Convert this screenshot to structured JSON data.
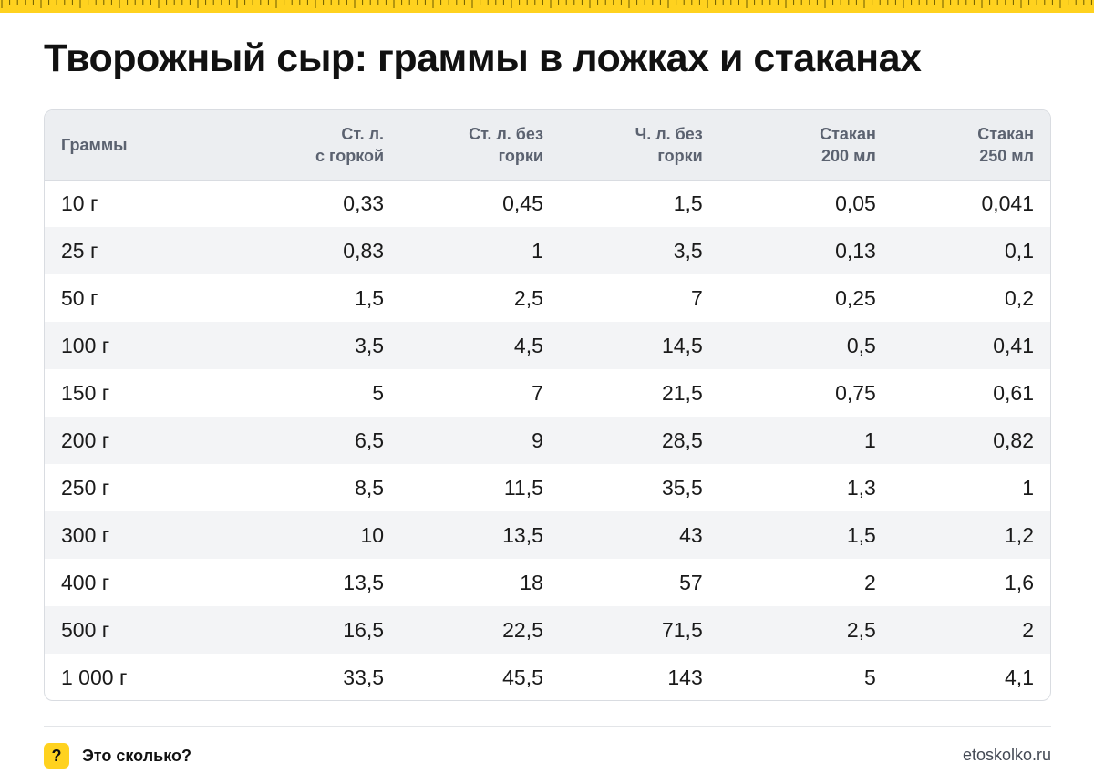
{
  "title": "Творожный сыр: граммы в ложках и стаканах",
  "table": {
    "headers": [
      [
        "Граммы"
      ],
      [
        "Ст. л.",
        "с горкой"
      ],
      [
        "Ст. л. без",
        "горки"
      ],
      [
        "Ч. л. без",
        "горки"
      ],
      [
        "Стакан",
        "200 мл"
      ],
      [
        "Стакан",
        "250 мл"
      ]
    ],
    "rows": [
      [
        "10 г",
        "0,33",
        "0,45",
        "1,5",
        "0,05",
        "0,041"
      ],
      [
        "25 г",
        "0,83",
        "1",
        "3,5",
        "0,13",
        "0,1"
      ],
      [
        "50 г",
        "1,5",
        "2,5",
        "7",
        "0,25",
        "0,2"
      ],
      [
        "100 г",
        "3,5",
        "4,5",
        "14,5",
        "0,5",
        "0,41"
      ],
      [
        "150 г",
        "5",
        "7",
        "21,5",
        "0,75",
        "0,61"
      ],
      [
        "200 г",
        "6,5",
        "9",
        "28,5",
        "1",
        "0,82"
      ],
      [
        "250 г",
        "8,5",
        "11,5",
        "35,5",
        "1,3",
        "1"
      ],
      [
        "300 г",
        "10",
        "13,5",
        "43",
        "1,5",
        "1,2"
      ],
      [
        "400 г",
        "13,5",
        "18",
        "57",
        "2",
        "1,6"
      ],
      [
        "500 г",
        "16,5",
        "22,5",
        "71,5",
        "2,5",
        "2"
      ],
      [
        "1 000 г",
        "33,5",
        "45,5",
        "143",
        "5",
        "4,1"
      ]
    ]
  },
  "footer": {
    "badge": "?",
    "brand": "Это сколько?",
    "site": "etoskolko.ru"
  },
  "colors": {
    "accent": "#ffd21f",
    "header_bg": "#eceef1",
    "stripe_bg": "#f3f4f6"
  },
  "icons": {
    "ruler": "ruler-tick-strip",
    "badge": "question-mark-icon"
  }
}
